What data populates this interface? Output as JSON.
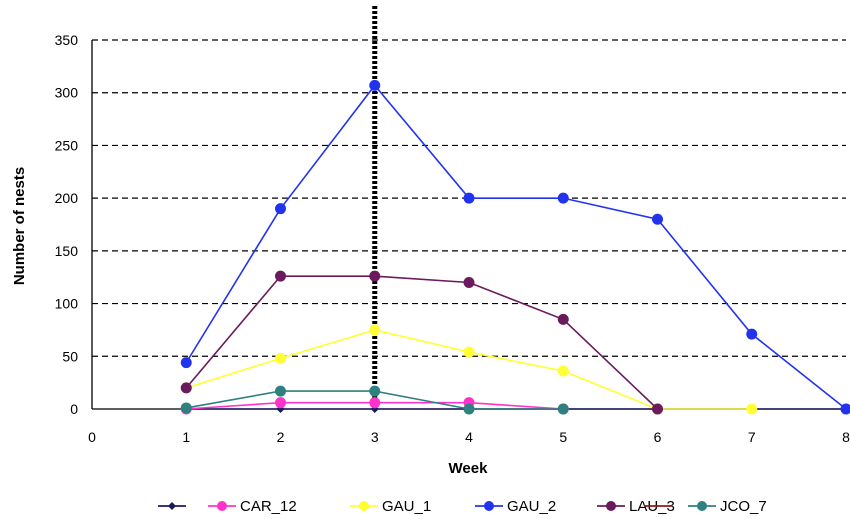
{
  "chart_data": {
    "type": "line",
    "xlabel": "Week",
    "ylabel": "Number of nests",
    "xlim": [
      0,
      8
    ],
    "ylim": [
      0,
      350
    ],
    "x_ticks": [
      0,
      1,
      2,
      3,
      4,
      5,
      6,
      7,
      8
    ],
    "y_ticks": [
      0,
      50,
      100,
      150,
      200,
      250,
      300,
      350
    ],
    "grid": "horizontal dashed",
    "reference_line": {
      "x": 3,
      "style": "dotted"
    },
    "legend_position": "bottom",
    "series": [
      {
        "name": "",
        "color": "#1a1a60",
        "marker": "diamond",
        "x": [
          1,
          2,
          3,
          4,
          5,
          6,
          7,
          8
        ],
        "y": [
          0,
          0,
          0,
          0,
          0,
          0,
          0,
          0
        ]
      },
      {
        "name": "CAR_12",
        "color": "#ff33cc",
        "marker": "circle",
        "x": [
          1,
          2,
          3,
          4,
          5
        ],
        "y": [
          0,
          6,
          6,
          6,
          0
        ]
      },
      {
        "name": "GAU_1",
        "color": "#ffff33",
        "marker": "circle",
        "x": [
          1,
          2,
          3,
          4,
          5,
          6,
          7
        ],
        "y": [
          20,
          48,
          75,
          54,
          36,
          0,
          0
        ]
      },
      {
        "name": "GAU_2",
        "color": "#2233ee",
        "marker": "circle",
        "x": [
          1,
          2,
          3,
          4,
          5,
          6,
          7,
          8
        ],
        "y": [
          44,
          190,
          307,
          200,
          200,
          180,
          71,
          0
        ]
      },
      {
        "name": "LAU_3",
        "color": "#6b1a5e",
        "marker": "circle",
        "x": [
          1,
          2,
          3,
          4,
          5,
          6
        ],
        "y": [
          20,
          126,
          126,
          120,
          85,
          0
        ]
      },
      {
        "name": "",
        "color": "#8b1a1a",
        "marker": "dash",
        "x": [],
        "y": []
      },
      {
        "name": "JCO_7",
        "color": "#2f8080",
        "marker": "circle",
        "x": [
          1,
          2,
          3,
          4,
          5
        ],
        "y": [
          1,
          17,
          17,
          0,
          0
        ]
      }
    ]
  }
}
